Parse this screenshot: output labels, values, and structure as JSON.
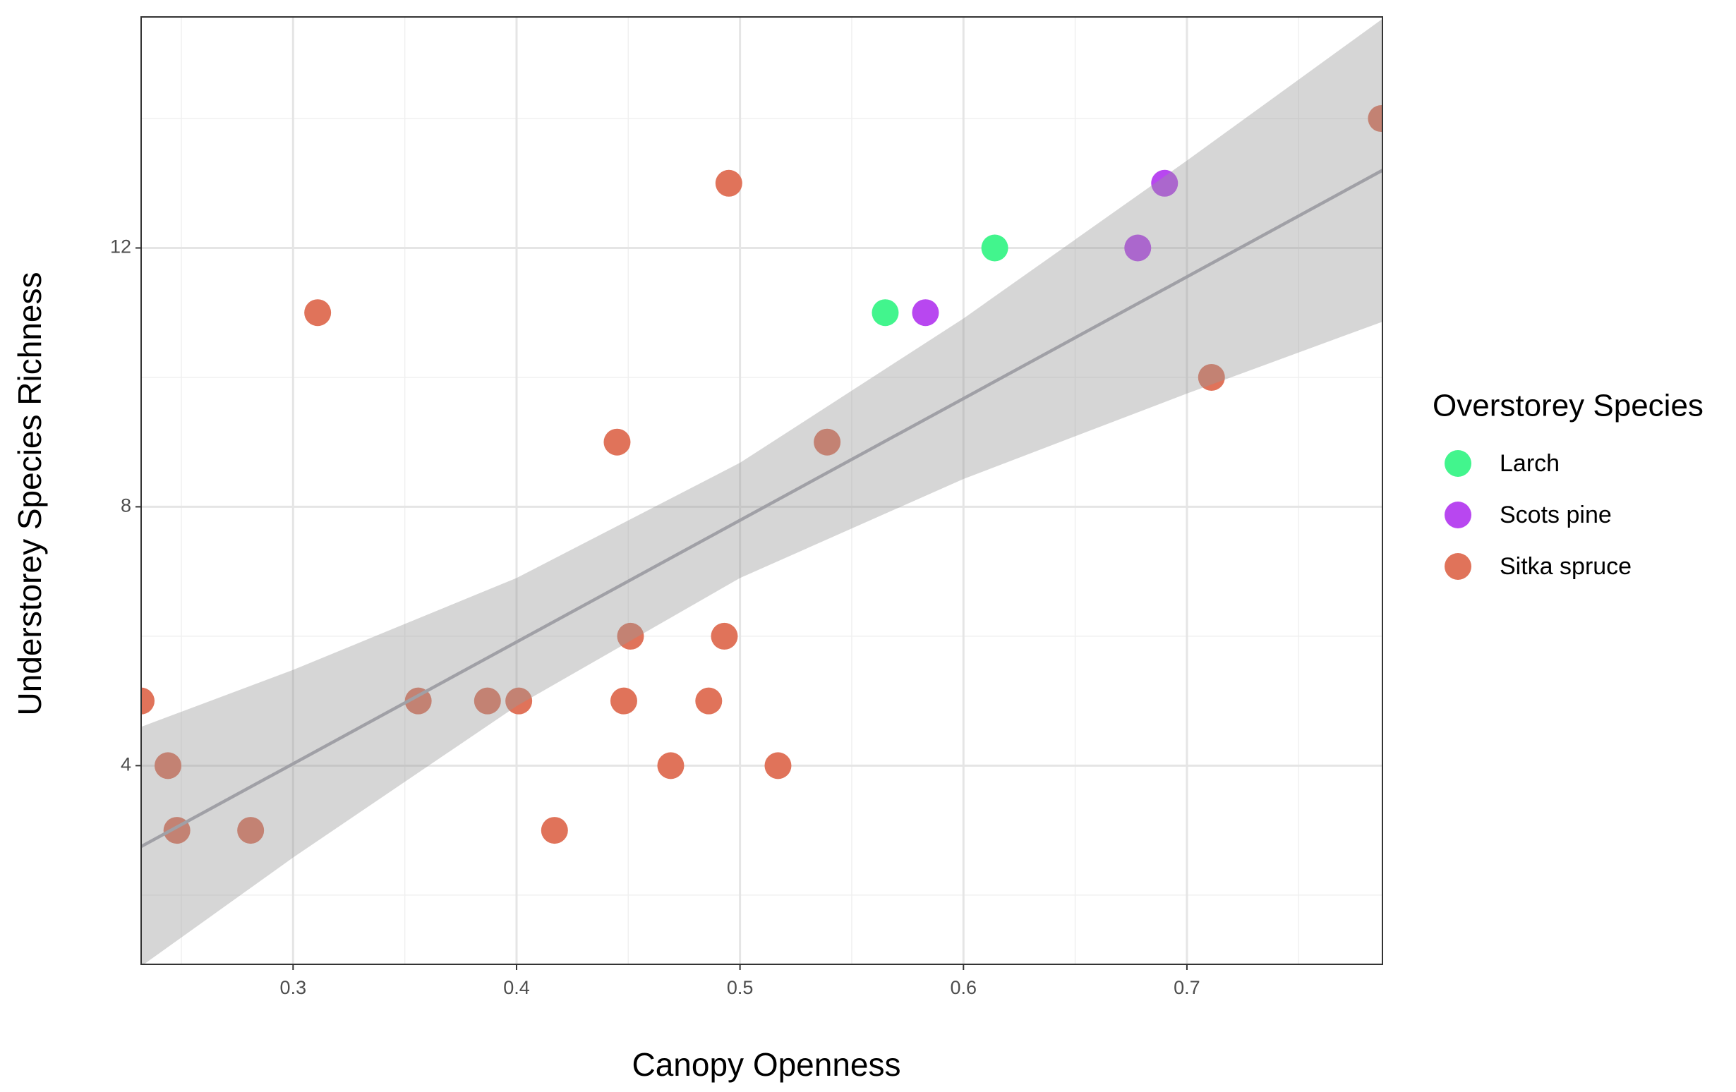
{
  "chart_data": {
    "type": "scatter",
    "x_label": "Canopy Openness",
    "y_label": "Understorey Species Richness",
    "legend_title": "Overstorey Species",
    "legend_position": "right",
    "grid": true,
    "xlim": [
      0.232,
      0.7875
    ],
    "ylim": [
      0.93,
      15.57
    ],
    "xticks": [
      0.3,
      0.4,
      0.5,
      0.6,
      0.7
    ],
    "yticks": [
      4,
      8,
      12
    ],
    "xminor": [
      0.25,
      0.35,
      0.45,
      0.55,
      0.65,
      0.75
    ],
    "yminor": [
      2,
      6,
      10,
      14
    ],
    "series": [
      {
        "name": "Larch",
        "color": "#42f58d",
        "x": [
          0.565,
          0.614
        ],
        "values": [
          11,
          12
        ]
      },
      {
        "name": "Scots pine",
        "color": "#b847f0",
        "x": [
          0.583,
          0.678,
          0.69
        ],
        "values": [
          11,
          12,
          13
        ]
      },
      {
        "name": "Sitka spruce",
        "color": "#e0735a",
        "x": [
          0.232,
          0.244,
          0.248,
          0.281,
          0.311,
          0.356,
          0.387,
          0.401,
          0.417,
          0.445,
          0.448,
          0.451,
          0.469,
          0.486,
          0.493,
          0.495,
          0.517,
          0.539,
          0.711,
          0.787
        ],
        "values": [
          5,
          4,
          3,
          3,
          11,
          5,
          5,
          5,
          3,
          9,
          5,
          6,
          4,
          5,
          6,
          13,
          4,
          9,
          10,
          14
        ]
      }
    ],
    "fit": {
      "color": "#a0a0a6",
      "x": [
        0.232,
        0.7875
      ],
      "values": [
        2.75,
        13.2
      ]
    },
    "band": {
      "color": "#999999",
      "x": [
        0.232,
        0.3,
        0.4,
        0.5,
        0.6,
        0.7,
        0.7875
      ],
      "lower": [
        0.9,
        2.58,
        4.92,
        6.9,
        8.43,
        9.75,
        10.86
      ],
      "upper": [
        4.6,
        5.48,
        6.9,
        8.68,
        10.91,
        13.35,
        15.54
      ]
    }
  }
}
